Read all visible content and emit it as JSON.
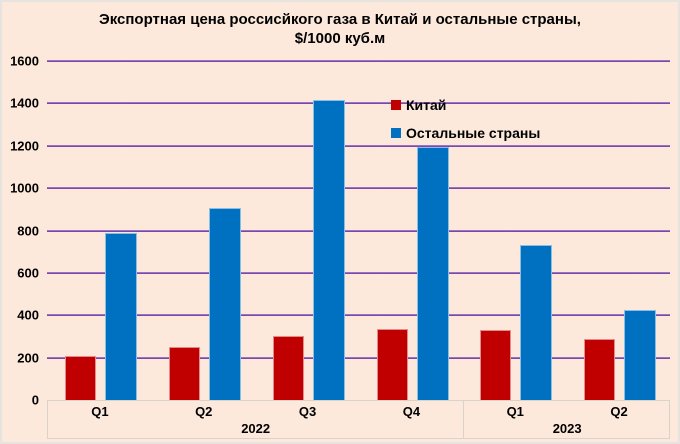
{
  "title": {
    "line1": "Экспортная цена россисйкого газа в Китай и остальные страны,",
    "line2": "$/1000 куб.м"
  },
  "legend": {
    "items": [
      {
        "label": "Китай",
        "color": "#C00000"
      },
      {
        "label": "Остальные страны",
        "color": "#0070C0"
      }
    ]
  },
  "chart_data": {
    "type": "bar",
    "title": "Экспортная цена россисйкого газа в Китай и остальные страны, $/1000 куб.м",
    "categories": [
      "Q1",
      "Q2",
      "Q3",
      "Q4",
      "Q1",
      "Q2"
    ],
    "year_groups": [
      {
        "label": "2022",
        "span": 4
      },
      {
        "label": "2023",
        "span": 2
      }
    ],
    "series": [
      {
        "name": "Китай",
        "color": "#C00000",
        "values": [
          210,
          248,
          303,
          334,
          330,
          290
        ]
      },
      {
        "name": "Остальные страны",
        "color": "#0070C0",
        "values": [
          790,
          905,
          1415,
          1195,
          730,
          425
        ]
      }
    ],
    "ylabel": "$/1000 куб.м",
    "ylim": [
      0,
      1600
    ],
    "yticks": [
      0,
      200,
      400,
      600,
      800,
      1000,
      1200,
      1400,
      1600
    ],
    "grid": true,
    "legend_position": "inside-upper-right"
  },
  "colors": {
    "background": "#FCE9DC",
    "gridline": "#7C52A8",
    "axis_box_border": "#DAD3C9",
    "bar_china": "#C00000",
    "bar_others": "#0070C0",
    "text": "#000000"
  }
}
